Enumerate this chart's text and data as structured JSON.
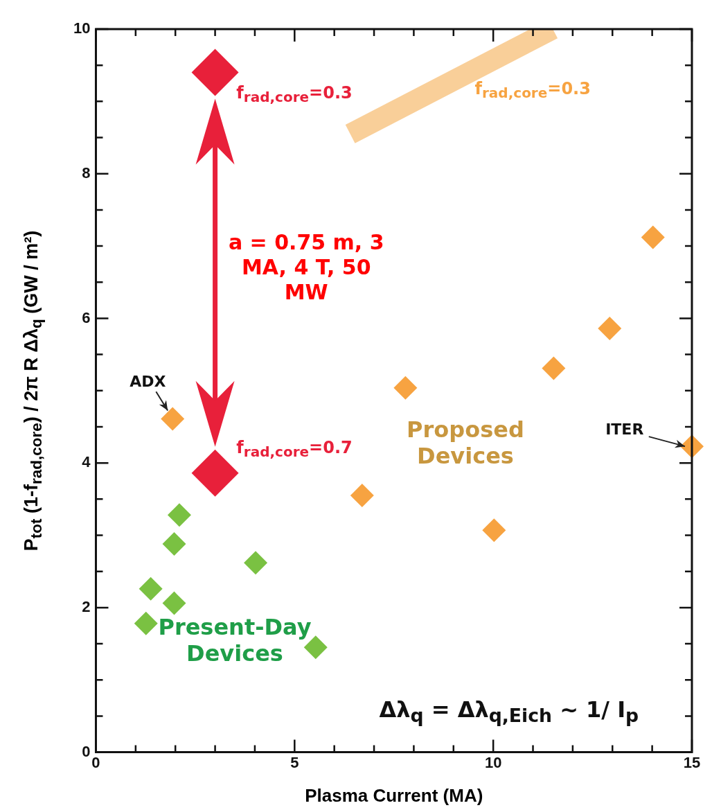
{
  "chart_data": {
    "type": "scatter",
    "xlabel": "Plasma Current (MA)",
    "ylabel": "P$_{tot}$  (1-f$_{rad,core}$) / 2π R Δλ$_{q}$ (GW / m²)",
    "xlim": [
      0,
      15
    ],
    "ylim": [
      0,
      10
    ],
    "xticks": [
      0,
      {
        "value": 1,
        "label": null
      },
      {
        "value": 2,
        "label": null
      },
      {
        "value": 3,
        "label": null
      },
      {
        "value": 4,
        "label": null
      },
      5,
      {
        "value": 6,
        "label": null
      },
      {
        "value": 7,
        "label": null
      },
      {
        "value": 8,
        "label": null
      },
      {
        "value": 9,
        "label": null
      },
      10,
      {
        "value": 11,
        "label": null
      },
      {
        "value": 12,
        "label": null
      },
      {
        "value": 13,
        "label": null
      },
      {
        "value": 14,
        "label": null
      },
      15
    ],
    "yticks": [
      0,
      {
        "value": 0.5,
        "label": null
      },
      {
        "value": 1,
        "label": null
      },
      {
        "value": 1.5,
        "label": null
      },
      2,
      {
        "value": 2.5,
        "label": null
      },
      {
        "value": 3,
        "label": null
      },
      {
        "value": 3.5,
        "label": null
      },
      4,
      {
        "value": 4.5,
        "label": null
      },
      {
        "value": 5,
        "label": null
      },
      {
        "value": 5.5,
        "label": null
      },
      6,
      {
        "value": 6.5,
        "label": null
      },
      {
        "value": 7,
        "label": null
      },
      {
        "value": 7.5,
        "label": null
      },
      8,
      {
        "value": 8.5,
        "label": null
      },
      {
        "value": 9,
        "label": null
      },
      {
        "value": 9.5,
        "label": null
      },
      10
    ],
    "grid": false,
    "legend": false,
    "marker": "diamond",
    "series": [
      {
        "color": "#7ac142",
        "x": [
          1.26,
          1.38,
          1.97,
          1.97,
          2.1,
          4.02,
          5.53
        ],
        "values": [
          1.78,
          2.26,
          2.06,
          2.88,
          3.28,
          2.62,
          1.45
        ]
      },
      {
        "color": "#f7a341",
        "x": [
          1.93,
          6.7,
          7.79,
          10.02,
          11.52,
          12.93,
          14.02,
          15
        ],
        "values": [
          4.61,
          3.55,
          5.04,
          3.07,
          5.31,
          5.86,
          7.12,
          4.23
        ]
      },
      {
        "color": "#e8203a",
        "x": [
          3,
          3
        ],
        "values": [
          9.4,
          3.86
        ]
      },
      {
        "type": "line",
        "marker": "none",
        "color": "#f9cf99",
        "x": [
          6.4,
          11.5
        ],
        "values": [
          8.55,
          10
        ]
      }
    ],
    "annotations": [
      "f$_{rad,core}$=0.3",
      "f$_{rad,core}$=0.7",
      "f$_{rad,core}$=0.3",
      "a = 0.75 m, 3 MA, 4 T, 50 MW",
      "ADX",
      "ITER",
      "Proposed Devices",
      "Present-Day Devices",
      "Δλ$_{q}$ = Δλ$_{q,Eich}$ ~ 1/ I$_{p}$"
    ]
  }
}
